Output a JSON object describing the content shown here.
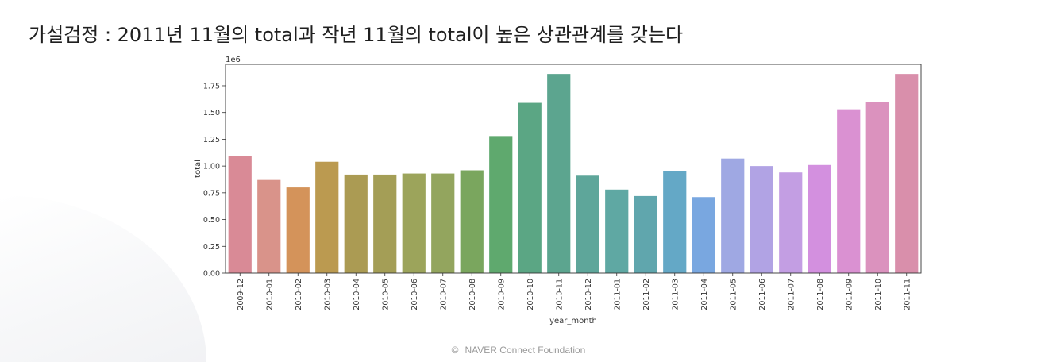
{
  "slide": {
    "title": "가설검정 : 2011년 11월의 total과 작년 11월의 total이 높은 상관관계를 갖는다"
  },
  "footer": {
    "symbol": "©",
    "text": "NAVER Connect Foundation"
  },
  "chart_data": {
    "type": "bar",
    "xlabel": "year_month",
    "ylabel": "total",
    "scale_label": "1e6",
    "ylim": [
      0,
      1.95
    ],
    "yticks": [
      "0.00",
      "0.25",
      "0.50",
      "0.75",
      "1.00",
      "1.25",
      "1.50",
      "1.75"
    ],
    "ytick_values": [
      0,
      0.25,
      0.5,
      0.75,
      1.0,
      1.25,
      1.5,
      1.75
    ],
    "categories": [
      "2009-12",
      "2010-01",
      "2010-02",
      "2010-03",
      "2010-04",
      "2010-05",
      "2010-06",
      "2010-07",
      "2010-08",
      "2010-09",
      "2010-10",
      "2010-11",
      "2010-12",
      "2011-01",
      "2011-02",
      "2011-03",
      "2011-04",
      "2011-05",
      "2011-06",
      "2011-07",
      "2011-08",
      "2011-09",
      "2011-10",
      "2011-11"
    ],
    "values": [
      1.09,
      0.87,
      0.8,
      1.04,
      0.92,
      0.92,
      0.93,
      0.93,
      0.96,
      1.28,
      1.59,
      1.86,
      0.91,
      0.78,
      0.72,
      0.95,
      0.71,
      1.07,
      1.0,
      0.94,
      1.01,
      1.53,
      1.6,
      1.86
    ],
    "colors": [
      "#d98a96",
      "#d9938a",
      "#d4935a",
      "#bb9a50",
      "#ab9b53",
      "#a49e56",
      "#9ca45b",
      "#93a55e",
      "#7aa65e",
      "#5fa96e",
      "#5ba684",
      "#5ca58f",
      "#5ea69a",
      "#5fa8a3",
      "#60a6ad",
      "#64a8c6",
      "#79a7e0",
      "#9fa8e3",
      "#b1a3e4",
      "#c39ee3",
      "#d390df",
      "#da91d2",
      "#db92be",
      "#d98fab"
    ],
    "grid": false,
    "legend": "none"
  }
}
